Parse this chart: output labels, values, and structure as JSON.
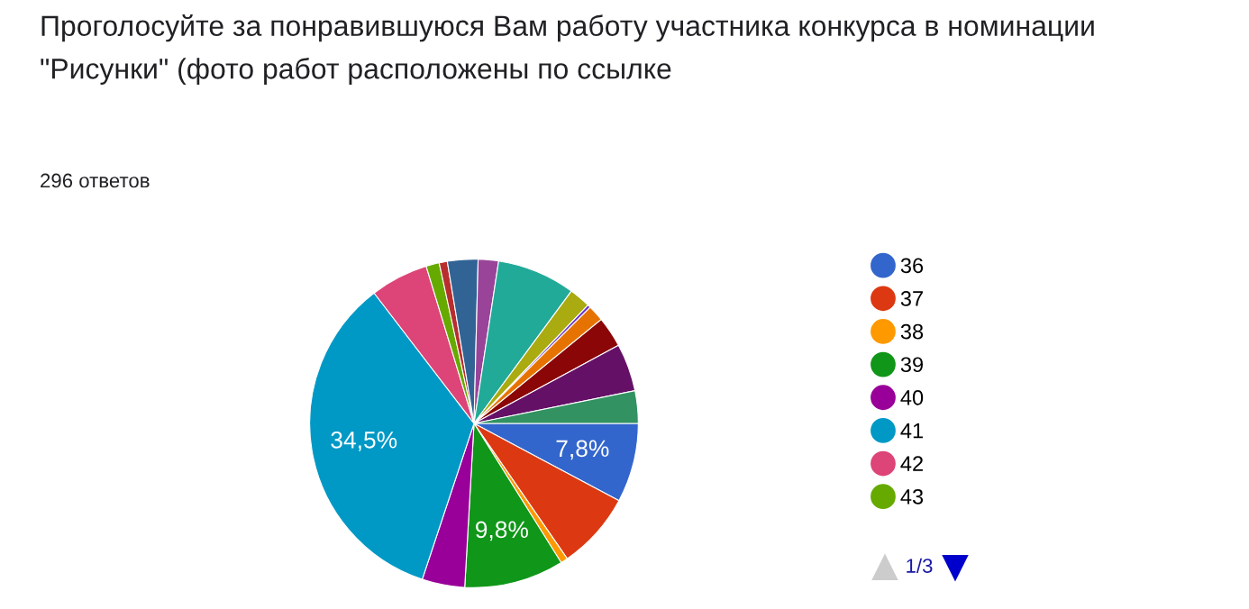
{
  "chart_data": {
    "type": "pie",
    "title": "Проголосуйте за понравившуюся Вам работу участника конкурса в номинации\n\"Рисунки\" (фото работ расположены по ссылке",
    "subtitle": "296 ответов",
    "categories": [
      "36",
      "37",
      "38",
      "39",
      "40",
      "41",
      "42",
      "43",
      null,
      null,
      null,
      null,
      null,
      null,
      null,
      null,
      null,
      null
    ],
    "values": [
      7.8,
      7.6,
      0.7,
      9.8,
      4.2,
      34.5,
      5.7,
      1.3,
      0.8,
      3.0,
      2.0,
      7.7,
      2.1,
      0.3,
      1.6,
      3.0,
      4.7,
      3.2
    ],
    "colors": [
      "#3366cc",
      "#dc3912",
      "#ff9900",
      "#109618",
      "#990099",
      "#0099c6",
      "#dd4477",
      "#66aa00",
      "#b82e2e",
      "#316395",
      "#994499",
      "#22aa99",
      "#aaaa11",
      "#6633cc",
      "#e67300",
      "#8b0707",
      "#651067",
      "#329262"
    ],
    "value_labels": [
      "7,8%",
      null,
      null,
      "9,8%",
      null,
      "34,5%",
      null,
      null,
      null,
      null,
      null,
      null,
      null,
      null,
      null,
      null,
      null,
      null
    ],
    "legend": "right",
    "annotations": [
      "1/3"
    ]
  }
}
